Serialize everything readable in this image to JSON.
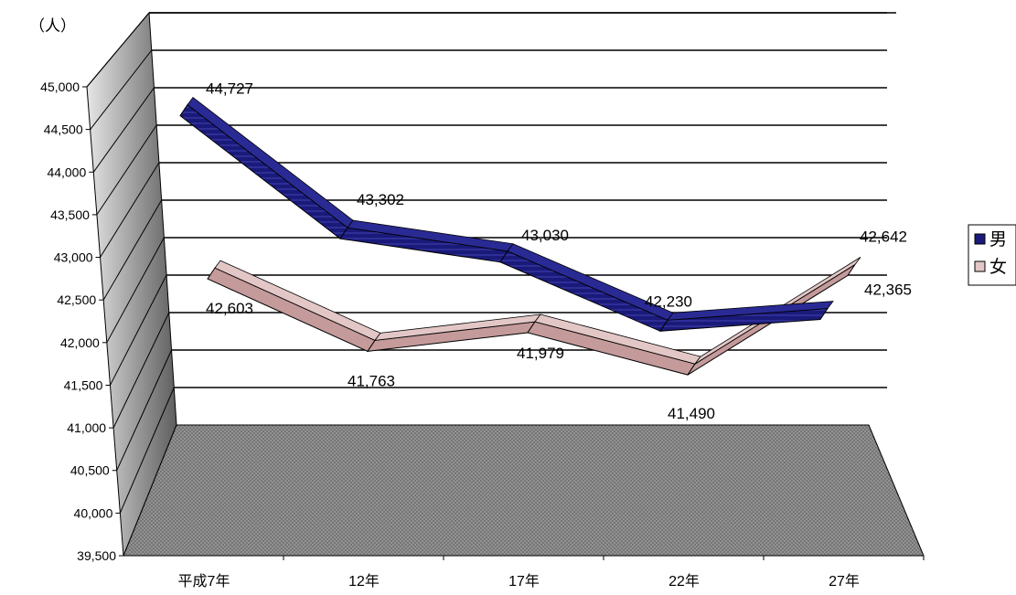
{
  "chart_data": {
    "type": "line",
    "style": "3d-ribbon",
    "unit_label": "（人）",
    "categories": [
      "平成7年",
      "12年",
      "17年",
      "22年",
      "27年"
    ],
    "series": [
      {
        "name": "男",
        "values": [
          44727,
          43302,
          43030,
          42230,
          42365
        ],
        "color": "#1a1a7a"
      },
      {
        "name": "女",
        "values": [
          42603,
          41763,
          41979,
          41490,
          42642
        ],
        "color": "#c49a9a"
      }
    ],
    "value_labels": {
      "男": [
        "44,727",
        "43,302",
        "43,030",
        "42,230",
        "42,365"
      ],
      "女": [
        "42,603",
        "41,763",
        "41,979",
        "41,490",
        "42,642"
      ]
    },
    "y_ticks": [
      "39,500",
      "40,000",
      "40,500",
      "41,000",
      "41,500",
      "42,000",
      "42,500",
      "43,000",
      "43,500",
      "44,000",
      "44,500",
      "45,000"
    ],
    "ylim": [
      39500,
      45000
    ],
    "grid": true,
    "legend_position": "right"
  }
}
